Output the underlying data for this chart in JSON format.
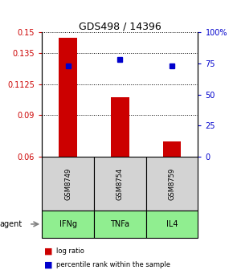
{
  "title": "GDS498 / 14396",
  "samples": [
    "GSM8749",
    "GSM8754",
    "GSM8759"
  ],
  "agents": [
    "IFNg",
    "TNFa",
    "IL4"
  ],
  "log_ratios": [
    0.146,
    0.103,
    0.071
  ],
  "percentile_ranks": [
    73,
    78,
    73
  ],
  "bar_color": "#cc0000",
  "dot_color": "#0000cc",
  "ylim_left": [
    0.06,
    0.15
  ],
  "ylim_right": [
    0,
    100
  ],
  "yticks_left": [
    0.06,
    0.09,
    0.1125,
    0.135,
    0.15
  ],
  "yticks_right": [
    0,
    25,
    50,
    75,
    100
  ],
  "ytick_labels_left": [
    "0.06",
    "0.09",
    "0.1125",
    "0.135",
    "0.15"
  ],
  "ytick_labels_right": [
    "0",
    "25",
    "50",
    "75",
    "100%"
  ],
  "bar_base": 0.06,
  "sample_box_color": "#d3d3d3",
  "agent_box_color": "#90ee90",
  "legend_items": [
    "log ratio",
    "percentile rank within the sample"
  ],
  "legend_colors": [
    "#cc0000",
    "#0000cc"
  ],
  "agent_label": "agent"
}
